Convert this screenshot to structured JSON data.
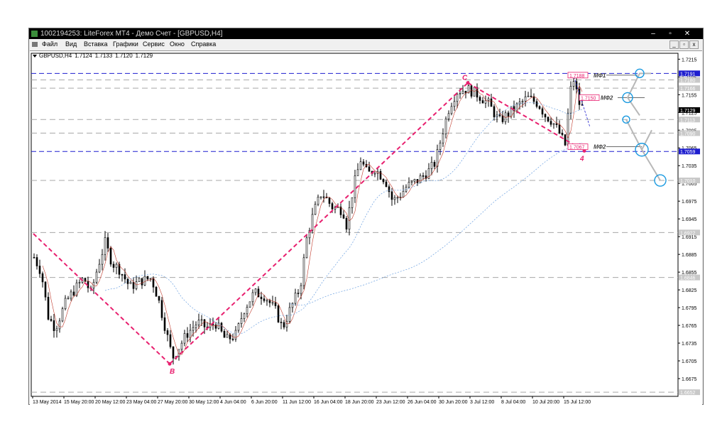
{
  "window": {
    "title": "1002194253: LiteForex MT4 - Демо Счет - [GBPUSD,H4]",
    "min_icon": "minimize-icon",
    "max_icon": "maximize-icon",
    "close_icon": "close-icon"
  },
  "menu": {
    "items": [
      "Файл",
      "Вид",
      "Вставка",
      "Графики",
      "Сервис",
      "Окно",
      "Справка"
    ]
  },
  "chart_header": {
    "symbol": "GBPUSD,H4",
    "open": "1.7124",
    "high": "1.7133",
    "low": "1.7120",
    "close": "1.7129"
  },
  "chart_data": {
    "type": "candlestick",
    "symbol": "GBPUSD",
    "timeframe": "H4",
    "ylim": [
      1.6645,
      1.7225
    ],
    "y_ticks": [
      "1.7215",
      "1.7185",
      "1.7155",
      "1.7125",
      "1.7095",
      "1.7065",
      "1.7035",
      "1.7005",
      "1.6975",
      "1.6945",
      "1.6915",
      "1.6885",
      "1.6855",
      "1.6825",
      "1.6795",
      "1.6765",
      "1.6735",
      "1.6705",
      "1.6675"
    ],
    "x_ticks": [
      "13 May 2014",
      "15 May 20:00",
      "20 May 12:00",
      "23 May 04:00",
      "27 May 20:00",
      "30 May 12:00",
      "4 Jun 04:00",
      "6 Jun 20:00",
      "11 Jun 12:00",
      "16 Jun 04:00",
      "18 Jun 20:00",
      "23 Jun 12:00",
      "26 Jun 04:00",
      "30 Jun 20:00",
      "3 Jul 12:00",
      "8 Jul 04:00",
      "10 Jul 20:00",
      "15 Jul 12:00"
    ],
    "current_price": "1.7129",
    "level_labels": [
      {
        "price": 1.7191,
        "text": "1.7191",
        "style": "blue"
      },
      {
        "price": 1.718,
        "text": "1.7180",
        "style": "gray"
      },
      {
        "price": 1.7166,
        "text": "1.7166",
        "style": "gray"
      },
      {
        "price": 1.7113,
        "text": "1.7113",
        "style": "gray"
      },
      {
        "price": 1.709,
        "text": "1.7090",
        "style": "gray"
      },
      {
        "price": 1.7059,
        "text": "1.7059",
        "style": "blue"
      },
      {
        "price": 1.701,
        "text": "1.7010",
        "style": "gray"
      },
      {
        "price": 1.6922,
        "text": "1.6922",
        "style": "gray"
      },
      {
        "price": 1.6846,
        "text": "1.6846",
        "style": "gray"
      },
      {
        "price": 1.6652,
        "text": "1.6652",
        "style": "gray"
      }
    ],
    "target_boxes": [
      {
        "price": 1.7188,
        "text": "1.7188",
        "tag": "МФ1"
      },
      {
        "price": 1.715,
        "text": "1.7150",
        "tag": "МФ2"
      },
      {
        "price": 1.7067,
        "text": "1.7067",
        "tag": "МФ2"
      }
    ],
    "wave_labels": [
      "B",
      "C",
      "4"
    ],
    "wave_points": [
      {
        "label": "",
        "x": 0,
        "price": 1.692
      },
      {
        "label": "B",
        "x": 48,
        "price": 1.67
      },
      {
        "label": "C",
        "x": 153,
        "price": 1.7175
      },
      {
        "label": "4",
        "x": 194,
        "price": 1.706
      }
    ]
  }
}
